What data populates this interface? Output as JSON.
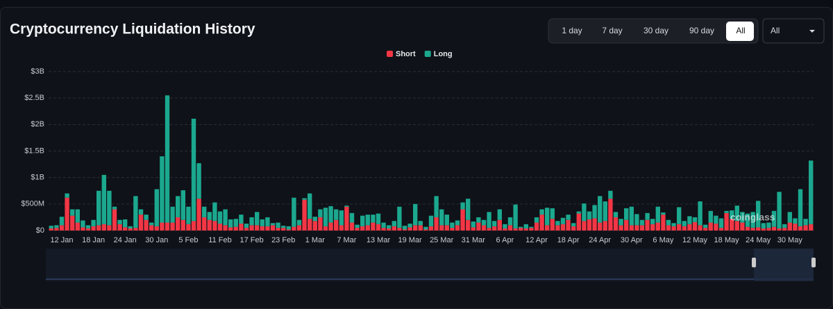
{
  "controls": {
    "ranges": [
      "1 day",
      "7 day",
      "30 day",
      "90 day",
      "All"
    ],
    "active_range": 4,
    "dropdown": "All"
  },
  "watermark": "coinglass",
  "chart_data": {
    "type": "stacked-bar",
    "title": "Cryptocurrency Liquidation History",
    "categories": [
      null,
      null,
      "12 Jan",
      null,
      null,
      null,
      null,
      null,
      "18 Jan",
      null,
      null,
      null,
      null,
      null,
      "24 Jan",
      null,
      null,
      null,
      null,
      null,
      "30 Jan",
      null,
      null,
      null,
      null,
      null,
      "5 Feb",
      null,
      null,
      null,
      null,
      null,
      "11 Feb",
      null,
      null,
      null,
      null,
      null,
      "17 Feb",
      null,
      null,
      null,
      null,
      null,
      "23 Feb",
      null,
      null,
      null,
      null,
      null,
      "1 Mar",
      null,
      null,
      null,
      null,
      null,
      "7 Mar",
      null,
      null,
      null,
      null,
      null,
      "13 Mar",
      null,
      null,
      null,
      null,
      null,
      "19 Mar",
      null,
      null,
      null,
      null,
      null,
      "25 Mar",
      null,
      null,
      null,
      null,
      null,
      "31 Mar",
      null,
      null,
      null,
      null,
      null,
      "6 Apr",
      null,
      null,
      null,
      null,
      null,
      "12 Apr",
      null,
      null,
      null,
      null,
      null,
      "18 Apr",
      null,
      null,
      null,
      null,
      null,
      "24 Apr",
      null,
      null,
      null,
      null,
      null,
      "30 Apr",
      null,
      null,
      null,
      null,
      null,
      "6 May",
      null,
      null,
      null,
      null,
      null,
      "12 May",
      null,
      null,
      null,
      null,
      null,
      "18 May",
      null,
      null,
      null,
      null,
      null,
      "24 May",
      null,
      null,
      null,
      null,
      null,
      "30 May",
      null,
      null,
      null,
      null
    ],
    "series": [
      {
        "name": "Short",
        "color": "#f23645",
        "values": [
          40,
          50,
          100,
          620,
          280,
          150,
          60,
          40,
          80,
          100,
          120,
          100,
          400,
          120,
          60,
          40,
          50,
          300,
          200,
          100,
          80,
          150,
          150,
          150,
          250,
          200,
          120,
          180,
          600,
          250,
          200,
          180,
          130,
          100,
          60,
          70,
          130,
          50,
          100,
          100,
          80,
          80,
          100,
          50,
          50,
          20,
          70,
          100,
          580,
          220,
          180,
          250,
          80,
          150,
          200,
          100,
          450,
          150,
          50,
          80,
          100,
          150,
          120,
          50,
          40,
          80,
          50,
          20,
          60,
          100,
          100,
          20,
          80,
          250,
          100,
          100,
          50,
          100,
          400,
          200,
          60,
          150,
          100,
          50,
          80,
          200,
          40,
          100,
          40,
          50,
          40,
          50,
          150,
          300,
          100,
          220,
          100,
          120,
          200,
          80,
          320,
          180,
          210,
          230,
          150,
          180,
          600,
          250,
          100,
          200,
          100,
          100,
          100,
          200,
          120,
          150,
          300,
          100,
          80,
          120,
          80,
          120,
          160,
          100,
          50,
          150,
          130,
          50,
          330,
          220,
          180,
          150,
          70,
          50,
          60,
          40,
          50,
          70,
          40,
          50,
          150,
          130,
          80,
          100,
          120
        ]
      },
      {
        "name": "Long",
        "color": "#1ba88f",
        "values": [
          50,
          50,
          160,
          80,
          120,
          250,
          130,
          60,
          120,
          650,
          930,
          650,
          50,
          80,
          150,
          40,
          600,
          100,
          100,
          50,
          700,
          1250,
          2400,
          300,
          400,
          560,
          330,
          1930,
          670,
          200,
          150,
          350,
          230,
          300,
          150,
          150,
          170,
          80,
          150,
          250,
          130,
          170,
          40,
          100,
          40,
          60,
          550,
          100,
          30,
          480,
          80,
          150,
          350,
          310,
          200,
          280,
          20,
          180,
          60,
          200,
          200,
          150,
          200,
          100,
          60,
          100,
          400,
          70,
          70,
          400,
          80,
          50,
          200,
          400,
          300,
          200,
          100,
          90,
          130,
          400,
          110,
          100,
          100,
          300,
          100,
          200,
          80,
          150,
          450,
          20,
          80,
          20,
          100,
          100,
          330,
          200,
          80,
          120,
          100,
          60,
          40,
          330,
          150,
          250,
          500,
          370,
          150,
          100,
          120,
          220,
          350,
          210,
          100,
          130,
          100,
          300,
          40,
          100,
          60,
          320,
          100,
          150,
          90,
          450,
          60,
          220,
          150,
          180,
          40,
          160,
          290,
          200,
          250,
          300,
          500,
          100,
          100,
          300,
          690,
          70,
          200,
          100,
          700,
          120,
          1200
        ]
      }
    ],
    "ylim": [
      0,
      3000
    ],
    "yticks": [
      {
        "value": 0,
        "label": "$0"
      },
      {
        "value": 500,
        "label": "$500M"
      },
      {
        "value": 1000,
        "label": "$1B"
      },
      {
        "value": 1500,
        "label": "$1.5B"
      },
      {
        "value": 2000,
        "label": "$2B"
      },
      {
        "value": 2500,
        "label": "$2.5B"
      },
      {
        "value": 3000,
        "label": "$3B"
      }
    ],
    "grid": true,
    "legend": "top"
  }
}
